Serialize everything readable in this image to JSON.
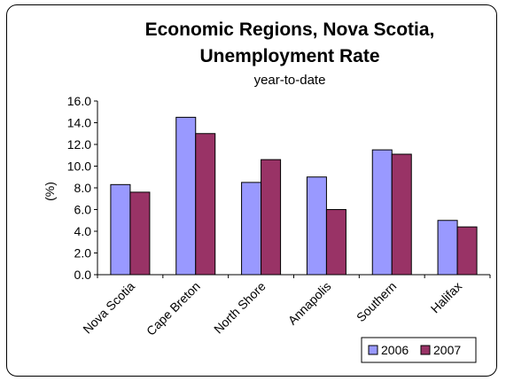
{
  "chart_data": {
    "type": "bar",
    "title": "Economic Regions, Nova Scotia,",
    "title_line2": "Unemployment Rate",
    "subtitle": "year-to-date",
    "xlabel": "",
    "ylabel": "(%)",
    "ylim": [
      0,
      16
    ],
    "yticks": [
      "0.0",
      "2.0",
      "4.0",
      "6.0",
      "8.0",
      "10.0",
      "12.0",
      "14.0",
      "16.0"
    ],
    "categories": [
      "Nova Scotia",
      "Cape Breton",
      "North Shore",
      "Annapolis",
      "Southern",
      "Halifax"
    ],
    "series": [
      {
        "name": "2006",
        "color": "#9999FF",
        "values": [
          8.3,
          14.5,
          8.5,
          9.0,
          11.5,
          5.0
        ]
      },
      {
        "name": "2007",
        "color": "#993366",
        "values": [
          7.6,
          13.0,
          10.6,
          6.0,
          11.1,
          4.4
        ]
      }
    ],
    "grid": false,
    "legend_position": "bottom-right"
  }
}
